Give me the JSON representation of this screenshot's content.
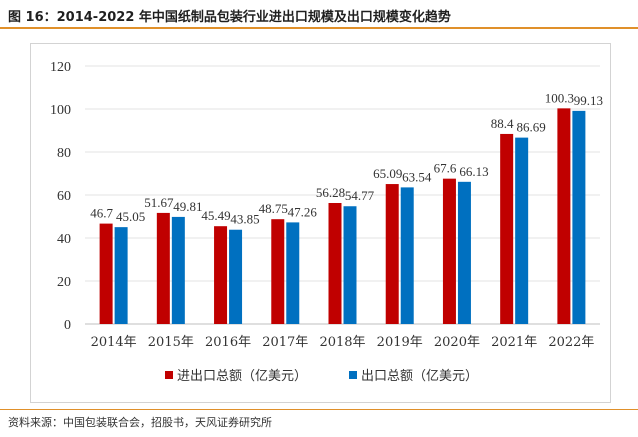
{
  "figure": {
    "title": "图 16：2014-2022 年中国纸制品包装行业进出口规模及出口规模变化趋势",
    "source": "资料来源：中国包装联合会，招股书，天风证券研究所"
  },
  "chart_data": {
    "type": "bar",
    "title": "",
    "xlabel": "",
    "ylabel": "",
    "ylim": [
      0,
      120
    ],
    "yticks": [
      0,
      20,
      40,
      60,
      80,
      100,
      120
    ],
    "grid": true,
    "legend_position": "bottom",
    "categories": [
      "2014年",
      "2015年",
      "2016年",
      "2017年",
      "2018年",
      "2019年",
      "2020年",
      "2021年",
      "2022年"
    ],
    "series": [
      {
        "name": "进出口总额（亿美元）",
        "color": "#c00000",
        "values": [
          46.7,
          51.67,
          45.49,
          48.75,
          56.28,
          65.09,
          67.6,
          88.4,
          100.3
        ]
      },
      {
        "name": "出口总额（亿美元）",
        "color": "#0070c0",
        "values": [
          45.05,
          49.81,
          43.85,
          47.26,
          54.77,
          63.54,
          66.13,
          86.69,
          99.13
        ]
      }
    ]
  }
}
